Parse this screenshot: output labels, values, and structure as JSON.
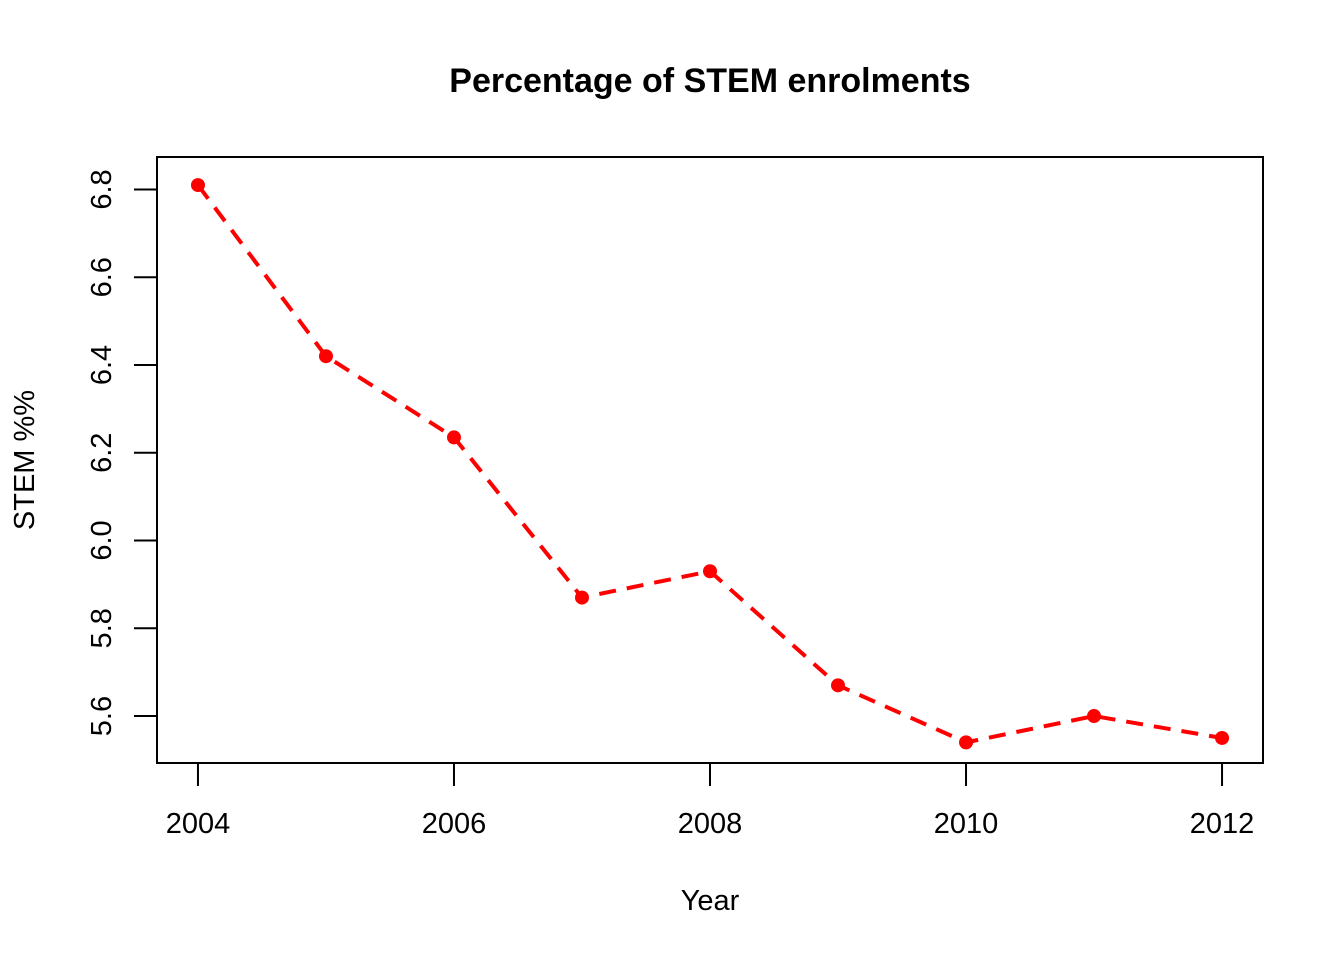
{
  "chart_data": {
    "type": "line",
    "title": "Percentage of STEM enrolments",
    "xlabel": "Year",
    "ylabel": "STEM %%",
    "x": [
      2004,
      2005,
      2006,
      2007,
      2008,
      2009,
      2010,
      2011,
      2012
    ],
    "series": [
      {
        "name": "STEM %",
        "values": [
          6.81,
          6.42,
          6.235,
          5.87,
          5.93,
          5.67,
          5.54,
          5.6,
          5.55
        ],
        "color": "#ff0000",
        "line_style": "dashed",
        "marker": "filled-circle"
      }
    ],
    "xlim": [
      2003.68,
      2012.32
    ],
    "ylim": [
      5.493,
      6.874
    ],
    "x_ticks": [
      2004,
      2006,
      2008,
      2010,
      2012
    ],
    "x_tick_labels": [
      "2004",
      "2006",
      "2008",
      "2010",
      "2012"
    ],
    "y_ticks": [
      5.6,
      5.8,
      6.0,
      6.2,
      6.4,
      6.6,
      6.8
    ],
    "y_tick_labels": [
      "5.6",
      "5.8",
      "6.0",
      "6.2",
      "6.4",
      "6.6",
      "6.8"
    ],
    "grid": false,
    "legend": "none"
  }
}
